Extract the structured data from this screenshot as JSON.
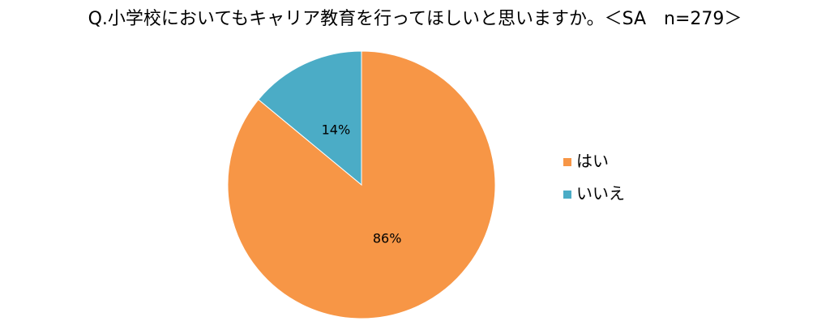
{
  "chart_data": {
    "type": "pie",
    "title": "Q.小学校においてもキャリア教育を行ってほしいと思いますか。＜SA　n=279＞",
    "categories": [
      "はい",
      "いいえ"
    ],
    "values": [
      86,
      14
    ],
    "value_labels": [
      "86%",
      "14%"
    ],
    "colors": [
      "#f79646",
      "#4bacc6"
    ],
    "legend": "right"
  }
}
